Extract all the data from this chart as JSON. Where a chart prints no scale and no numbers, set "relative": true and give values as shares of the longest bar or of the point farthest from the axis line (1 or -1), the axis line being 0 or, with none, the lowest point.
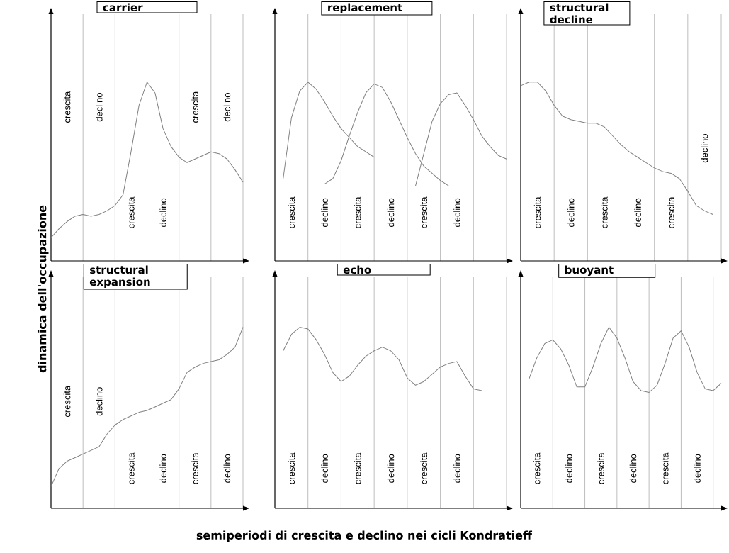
{
  "chart_data": [
    {
      "type": "line",
      "title": "carrier",
      "ylabel": "dinamica dell'occupazione",
      "relative": true,
      "grid": "x",
      "categories": [
        null,
        null,
        null,
        null,
        null,
        null,
        null,
        null,
        null,
        null,
        null,
        null,
        null,
        null,
        null,
        null,
        null,
        null,
        null,
        null,
        null,
        null,
        null,
        null,
        null
      ],
      "series": [
        {
          "color": "#808080",
          "values": [
            0.13,
            0.18,
            0.22,
            0.25,
            0.26,
            0.25,
            0.26,
            0.28,
            0.31,
            0.37,
            0.61,
            0.87,
            1.0,
            0.94,
            0.74,
            0.64,
            0.58,
            0.55,
            0.57,
            0.59,
            0.61,
            0.6,
            0.57,
            0.51,
            0.44
          ]
        }
      ],
      "annotations": [
        "crescita",
        "declino",
        "crescita",
        "declino",
        "crescita",
        "declino"
      ]
    },
    {
      "type": "line",
      "title": "replacement",
      "relative": true,
      "grid": "x",
      "categories": [
        null,
        null,
        null,
        null,
        null,
        null,
        null,
        null,
        null,
        null,
        null,
        null,
        null,
        null,
        null,
        null,
        null,
        null,
        null,
        null,
        null,
        null,
        null,
        null,
        null,
        null,
        null,
        null,
        null
      ],
      "series": [
        {
          "color": "#808080",
          "values": [
            null,
            0.46,
            0.8,
            0.95,
            1.0,
            0.96,
            0.89,
            0.81,
            0.74,
            0.69,
            0.64,
            0.61,
            0.58,
            null,
            null,
            null,
            null,
            null,
            null,
            null,
            null,
            null,
            null,
            null,
            null,
            null,
            null,
            null,
            null
          ]
        },
        {
          "color": "#808080",
          "values": [
            null,
            null,
            null,
            null,
            null,
            null,
            0.43,
            0.46,
            0.56,
            0.7,
            0.83,
            0.94,
            0.99,
            0.97,
            0.89,
            0.79,
            0.69,
            0.6,
            0.53,
            0.49,
            0.45,
            0.42,
            null,
            null,
            null,
            null,
            null,
            null,
            null
          ]
        },
        {
          "color": "#808080",
          "values": [
            null,
            null,
            null,
            null,
            null,
            null,
            null,
            null,
            null,
            null,
            null,
            null,
            null,
            null,
            null,
            null,
            null,
            0.42,
            0.6,
            0.78,
            0.88,
            0.93,
            0.94,
            0.87,
            0.79,
            0.7,
            0.64,
            0.59,
            0.57
          ]
        }
      ],
      "annotations": [
        "crescita",
        "declino",
        "crescita",
        "declino",
        "crescita",
        "declino"
      ]
    },
    {
      "type": "line",
      "title": "structural decline",
      "relative": true,
      "grid": "x",
      "categories": [
        null,
        null,
        null,
        null,
        null,
        null,
        null,
        null,
        null,
        null,
        null,
        null,
        null,
        null,
        null,
        null,
        null,
        null,
        null,
        null,
        null,
        null,
        null,
        null
      ],
      "series": [
        {
          "color": "#808080",
          "values": [
            0.98,
            1.0,
            1.0,
            0.95,
            0.87,
            0.81,
            0.79,
            0.78,
            0.77,
            0.77,
            0.75,
            0.7,
            0.65,
            0.61,
            0.58,
            0.55,
            0.52,
            0.5,
            0.49,
            0.46,
            0.39,
            0.31,
            0.28,
            0.26
          ]
        }
      ],
      "annotations": [
        "crescita",
        "declino",
        "crescita",
        "declino",
        "crescita",
        "declino"
      ]
    },
    {
      "type": "line",
      "title": "structural expansion",
      "relative": true,
      "grid": "x",
      "categories": [
        null,
        null,
        null,
        null,
        null,
        null,
        null,
        null,
        null,
        null,
        null,
        null,
        null,
        null,
        null,
        null,
        null,
        null,
        null,
        null,
        null,
        null,
        null,
        null,
        null
      ],
      "series": [
        {
          "color": "#808080",
          "values": [
            0.12,
            0.22,
            0.26,
            0.28,
            0.3,
            0.32,
            0.34,
            0.41,
            0.46,
            0.49,
            0.51,
            0.53,
            0.54,
            0.56,
            0.58,
            0.6,
            0.66,
            0.75,
            0.78,
            0.8,
            0.81,
            0.82,
            0.85,
            0.89,
            1.0
          ]
        }
      ],
      "annotations": [
        "crescita",
        "declino",
        "crescita",
        "declino",
        "crescita",
        "declino"
      ]
    },
    {
      "type": "line",
      "title": "echo",
      "xlabel": "semiperiodi di crescita e declino nei cicli Kondratieff",
      "relative": true,
      "grid": "x",
      "categories": [
        null,
        null,
        null,
        null,
        null,
        null,
        null,
        null,
        null,
        null,
        null,
        null,
        null,
        null,
        null,
        null,
        null,
        null,
        null,
        null,
        null,
        null,
        null,
        null,
        null,
        null,
        null,
        null,
        null
      ],
      "series": [
        {
          "color": "#808080",
          "values": [
            null,
            0.87,
            0.96,
            1.0,
            0.99,
            0.93,
            0.85,
            0.75,
            0.7,
            0.73,
            0.79,
            0.84,
            0.87,
            0.89,
            0.87,
            0.82,
            0.72,
            0.68,
            0.7,
            0.74,
            0.78,
            0.8,
            0.81,
            0.73,
            0.66,
            0.65,
            null,
            null,
            null
          ]
        }
      ],
      "annotations": [
        "crescita",
        "declino",
        "crescita",
        "declino",
        "crescita",
        "declino"
      ]
    },
    {
      "type": "line",
      "title": "buoyant",
      "relative": true,
      "grid": "x",
      "categories": [
        null,
        null,
        null,
        null,
        null,
        null,
        null,
        null,
        null,
        null,
        null,
        null,
        null,
        null,
        null,
        null,
        null,
        null,
        null,
        null,
        null,
        null,
        null,
        null,
        null,
        null
      ],
      "series": [
        {
          "color": "#808080",
          "values": [
            null,
            0.71,
            0.83,
            0.91,
            0.93,
            0.88,
            0.79,
            0.67,
            0.67,
            0.78,
            0.91,
            1.0,
            0.94,
            0.83,
            0.7,
            0.65,
            0.64,
            0.68,
            0.8,
            0.94,
            0.98,
            0.89,
            0.75,
            0.66,
            0.65,
            0.69
          ]
        }
      ],
      "annotations": [
        "crescita",
        "declino",
        "crescita",
        "declino",
        "crescita",
        "declino"
      ]
    }
  ]
}
